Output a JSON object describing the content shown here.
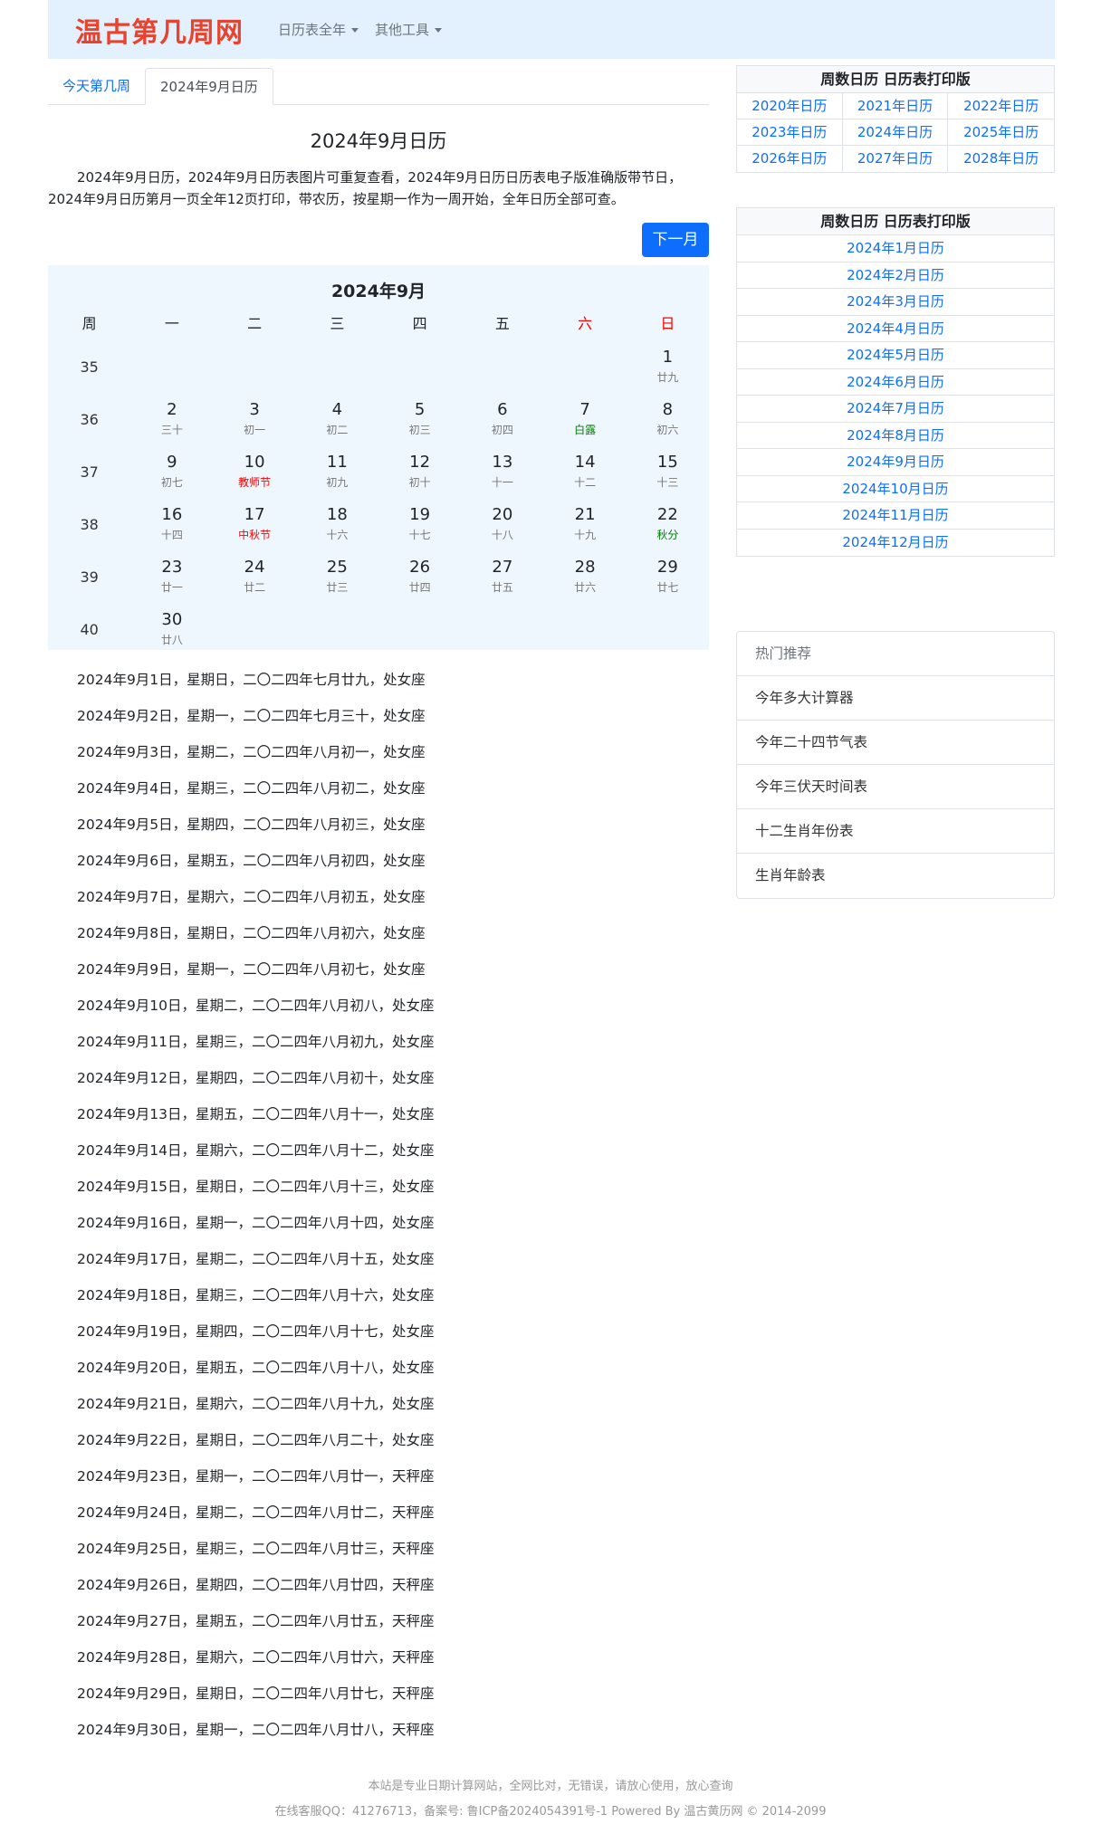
{
  "header": {
    "logo": "温古第几周网",
    "nav": [
      {
        "label": "日历表全年"
      },
      {
        "label": "其他工具"
      }
    ]
  },
  "tabs": [
    {
      "label": "今天第几周"
    },
    {
      "label": "2024年9月日历"
    }
  ],
  "main": {
    "title": "2024年9月日历",
    "intro": "2024年9月日历，2024年9月日历表图片可重复查看，2024年9月日历日历表电子版准确版带节日，2024年9月日历第月一页全年12页打印，带农历，按星期一作为一周开始，全年日历全部可查。",
    "next_label": "下一月"
  },
  "calendar": {
    "title": "2024年9月",
    "headers": [
      "周",
      "一",
      "二",
      "三",
      "四",
      "五",
      "六",
      "日"
    ],
    "weekend_color": "#ff0000",
    "festival_color": "#ff0000",
    "solar_term_color": "#008000",
    "weeks": [
      {
        "week": "35",
        "days": [
          null,
          null,
          null,
          null,
          null,
          null,
          {
            "d": "1",
            "l": "廿九"
          }
        ]
      },
      {
        "week": "36",
        "days": [
          {
            "d": "2",
            "l": "三十"
          },
          {
            "d": "3",
            "l": "初一"
          },
          {
            "d": "4",
            "l": "初二"
          },
          {
            "d": "5",
            "l": "初三"
          },
          {
            "d": "6",
            "l": "初四"
          },
          {
            "d": "7",
            "l": "白露",
            "type": "term"
          },
          {
            "d": "8",
            "l": "初六"
          }
        ]
      },
      {
        "week": "37",
        "days": [
          {
            "d": "9",
            "l": "初七"
          },
          {
            "d": "10",
            "l": "教师节",
            "type": "festival"
          },
          {
            "d": "11",
            "l": "初九"
          },
          {
            "d": "12",
            "l": "初十"
          },
          {
            "d": "13",
            "l": "十一"
          },
          {
            "d": "14",
            "l": "十二"
          },
          {
            "d": "15",
            "l": "十三"
          }
        ]
      },
      {
        "week": "38",
        "days": [
          {
            "d": "16",
            "l": "十四"
          },
          {
            "d": "17",
            "l": "中秋节",
            "type": "festival"
          },
          {
            "d": "18",
            "l": "十六"
          },
          {
            "d": "19",
            "l": "十七"
          },
          {
            "d": "20",
            "l": "十八"
          },
          {
            "d": "21",
            "l": "十九"
          },
          {
            "d": "22",
            "l": "秋分",
            "type": "term"
          }
        ]
      },
      {
        "week": "39",
        "days": [
          {
            "d": "23",
            "l": "廿一"
          },
          {
            "d": "24",
            "l": "廿二"
          },
          {
            "d": "25",
            "l": "廿三"
          },
          {
            "d": "26",
            "l": "廿四"
          },
          {
            "d": "27",
            "l": "廿五"
          },
          {
            "d": "28",
            "l": "廿六"
          },
          {
            "d": "29",
            "l": "廿七"
          }
        ]
      },
      {
        "week": "40",
        "days": [
          {
            "d": "30",
            "l": "廿八"
          },
          null,
          null,
          null,
          null,
          null,
          null
        ]
      }
    ]
  },
  "day_list": [
    "2024年9月1日，星期日，二〇二四年七月廿九，处女座",
    "2024年9月2日，星期一，二〇二四年七月三十，处女座",
    "2024年9月3日，星期二，二〇二四年八月初一，处女座",
    "2024年9月4日，星期三，二〇二四年八月初二，处女座",
    "2024年9月5日，星期四，二〇二四年八月初三，处女座",
    "2024年9月6日，星期五，二〇二四年八月初四，处女座",
    "2024年9月7日，星期六，二〇二四年八月初五，处女座",
    "2024年9月8日，星期日，二〇二四年八月初六，处女座",
    "2024年9月9日，星期一，二〇二四年八月初七，处女座",
    "2024年9月10日，星期二，二〇二四年八月初八，处女座",
    "2024年9月11日，星期三，二〇二四年八月初九，处女座",
    "2024年9月12日，星期四，二〇二四年八月初十，处女座",
    "2024年9月13日，星期五，二〇二四年八月十一，处女座",
    "2024年9月14日，星期六，二〇二四年八月十二，处女座",
    "2024年9月15日，星期日，二〇二四年八月十三，处女座",
    "2024年9月16日，星期一，二〇二四年八月十四，处女座",
    "2024年9月17日，星期二，二〇二四年八月十五，处女座",
    "2024年9月18日，星期三，二〇二四年八月十六，处女座",
    "2024年9月19日，星期四，二〇二四年八月十七，处女座",
    "2024年9月20日，星期五，二〇二四年八月十八，处女座",
    "2024年9月21日，星期六，二〇二四年八月十九，处女座",
    "2024年9月22日，星期日，二〇二四年八月二十，处女座",
    "2024年9月23日，星期一，二〇二四年八月廿一，天秤座",
    "2024年9月24日，星期二，二〇二四年八月廿二，天秤座",
    "2024年9月25日，星期三，二〇二四年八月廿三，天秤座",
    "2024年9月26日，星期四，二〇二四年八月廿四，天秤座",
    "2024年9月27日，星期五，二〇二四年八月廿五，天秤座",
    "2024年9月28日，星期六，二〇二四年八月廿六，天秤座",
    "2024年9月29日，星期日，二〇二四年八月廿七，天秤座",
    "2024年9月30日，星期一，二〇二四年八月廿八，天秤座"
  ],
  "sidebar": {
    "years_title": "周数日历 日历表打印版",
    "years": [
      "2020年日历",
      "2021年日历",
      "2022年日历",
      "2023年日历",
      "2024年日历",
      "2025年日历",
      "2026年日历",
      "2027年日历",
      "2028年日历"
    ],
    "months_title": "周数日历 日历表打印版",
    "months": [
      "2024年1月日历",
      "2024年2月日历",
      "2024年3月日历",
      "2024年4月日历",
      "2024年5月日历",
      "2024年6月日历",
      "2024年7月日历",
      "2024年8月日历",
      "2024年9月日历",
      "2024年10月日历",
      "2024年11月日历",
      "2024年12月日历"
    ],
    "hot": [
      "热门推荐",
      "今年多大计算器",
      "今年二十四节气表",
      "今年三伏天时间表",
      "十二生肖年份表",
      "生肖年龄表"
    ]
  },
  "footer": {
    "line1": "本站是专业日期计算网站，全网比对，无错误，请放心使用，放心查询",
    "line2": "在线客服QQ：41276713，备案号: 鲁ICP备2024054391号-1 Powered By 温古黄历网 © 2014-2099"
  }
}
